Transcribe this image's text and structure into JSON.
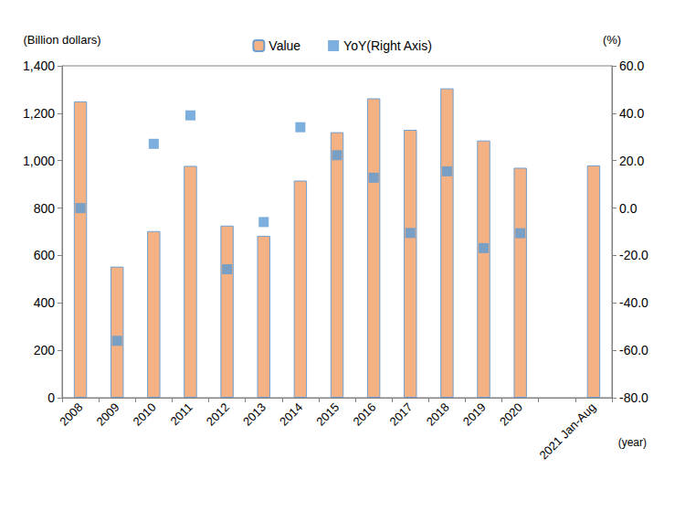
{
  "chart_data": {
    "type": "bar",
    "ylabel": "(Billion dollars)",
    "y2label": "(%)",
    "xlabel": "(year)",
    "categories": [
      "2008",
      "2009",
      "2010",
      "2011",
      "2012",
      "2013",
      "2014",
      "2015",
      "2016",
      "2017",
      "2018",
      "2019",
      "2020",
      null,
      "2021 Jan-Aug"
    ],
    "series": [
      {
        "name": "Value",
        "type": "bar",
        "color": "#F4B183",
        "values": [
          1250,
          553,
          703,
          978,
          726,
          683,
          916,
          1120,
          1263,
          1130,
          1305,
          1085,
          970,
          null,
          980
        ]
      },
      {
        "name": "YoY(Right Axis)",
        "type": "scatter",
        "marker": "square",
        "color": "#5B9BD5",
        "axis": "y2",
        "values": [
          0,
          -56,
          27.1,
          39.1,
          -25.8,
          -5.9,
          34.1,
          22.3,
          12.8,
          -10.5,
          15.5,
          -16.9,
          -10.6,
          null,
          null
        ]
      }
    ],
    "ylim": [
      0,
      1400
    ],
    "yticks": [
      0,
      200,
      400,
      600,
      800,
      {
        "value": 1000,
        "label": "1,000"
      },
      {
        "value": 1200,
        "label": "1,200"
      },
      {
        "value": 1400,
        "label": "1,400"
      }
    ],
    "y2lim": [
      -80,
      60
    ],
    "y2ticks": [
      {
        "value": -80,
        "label": "-80.0"
      },
      {
        "value": -60,
        "label": "-60.0"
      },
      {
        "value": -40,
        "label": "-40.0"
      },
      {
        "value": -20,
        "label": "-20.0"
      },
      {
        "value": 0,
        "label": "0.0"
      },
      {
        "value": 20,
        "label": "20.0"
      },
      {
        "value": 40,
        "label": "40.0"
      },
      {
        "value": 60,
        "label": "60.0"
      }
    ],
    "legend": "top",
    "grid": false
  }
}
